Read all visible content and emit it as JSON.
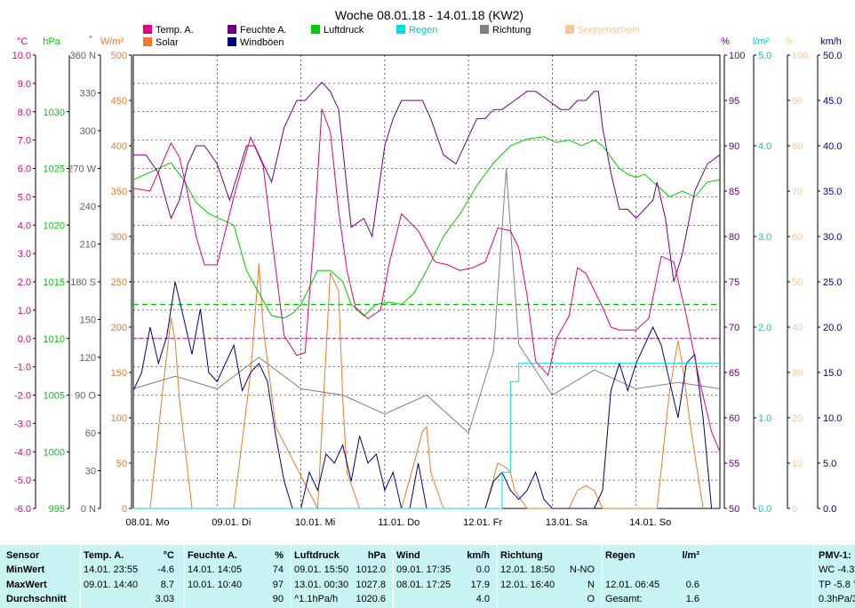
{
  "chart_data": {
    "type": "line",
    "title": "Woche 08.01.18 - 14.01.18 (KW2)",
    "legend": [
      {
        "name": "Temp. A.",
        "color": "#e0007a"
      },
      {
        "name": "Feuchte A.",
        "color": "#6a0080"
      },
      {
        "name": "Luftdruck",
        "color": "#00cc00"
      },
      {
        "name": "Regen",
        "color": "#00dede"
      },
      {
        "name": "Richtung",
        "color": "#808080"
      },
      {
        "name": "Sonnenschein",
        "color": "#f5c896"
      },
      {
        "name": "Solar",
        "color": "#f07828"
      },
      {
        "name": "Windböen",
        "color": "#000080"
      }
    ],
    "x_ticks": [
      "08.01. Mo",
      "09.01. Di",
      "10.01. Mi",
      "11.01. Do",
      "12.01. Fr",
      "13.01. Sa",
      "14.01. So"
    ],
    "axes": {
      "temp": {
        "unit": "°C",
        "min": -6,
        "max": 10,
        "ticks": [
          "10.0",
          "9.0",
          "8.0",
          "7.0",
          "6.0",
          "5.0",
          "4.0",
          "3.0",
          "2.0",
          "1.0",
          "0.0",
          "-1.0",
          "-2.0",
          "-3.0",
          "-4.0",
          "-5.0",
          "-6.0"
        ]
      },
      "pressure": {
        "unit": "hPa",
        "min": 995,
        "max": 1035,
        "ticks": [
          "1030",
          "1025",
          "1020",
          "1015",
          "1010",
          "1005",
          "1000",
          "995"
        ]
      },
      "direction": {
        "unit": "°",
        "min": 0,
        "max": 360,
        "ticks": [
          "360 N",
          "330",
          "300",
          "270 W",
          "240",
          "210",
          "180 S",
          "150",
          "120",
          "90 O",
          "60",
          "30",
          "0 N"
        ]
      },
      "solar": {
        "unit": "W/m²",
        "min": 0,
        "max": 500,
        "ticks": [
          "500",
          "450",
          "400",
          "350",
          "300",
          "250",
          "200",
          "150",
          "100",
          "50",
          "0"
        ]
      },
      "humidity": {
        "unit": "%",
        "min": 50,
        "max": 100,
        "ticks": [
          "100",
          "95",
          "90",
          "85",
          "80",
          "75",
          "70",
          "65",
          "60",
          "55",
          "50"
        ]
      },
      "rain": {
        "unit": "l/m²",
        "min": 0,
        "max": 5,
        "ticks": [
          "5.0",
          "4.0",
          "3.0",
          "2.0",
          "1.0",
          "0.0"
        ]
      },
      "sunshine": {
        "unit": "h",
        "min": 0,
        "max": 100,
        "ticks": [
          "100",
          "90",
          "80",
          "70",
          "60",
          "50",
          "40",
          "30",
          "20",
          "10",
          "0"
        ]
      },
      "wind": {
        "unit": "km/h",
        "min": 0,
        "max": 50,
        "ticks": [
          "50.0",
          "45.0",
          "40.0",
          "35.0",
          "30.0",
          "25.0",
          "20.0",
          "15.0",
          "10.0",
          "5.0",
          "0.0"
        ]
      }
    },
    "series": [
      {
        "name": "Temp. A.",
        "unit": "°C",
        "x_days": [
          0,
          0.2,
          0.45,
          0.55,
          0.65,
          0.75,
          0.85,
          1.0,
          1.2,
          1.4,
          1.55,
          1.65,
          1.8,
          1.95,
          2.05,
          2.15,
          2.25,
          2.35,
          2.45,
          2.55,
          2.65,
          2.8,
          2.95,
          3.05,
          3.2,
          3.4,
          3.6,
          3.75,
          3.9,
          4.05,
          4.2,
          4.35,
          4.5,
          4.6,
          4.7,
          4.8,
          4.95,
          5.05,
          5.2,
          5.3,
          5.4,
          5.5,
          5.6,
          5.7,
          5.8,
          5.9,
          6.0,
          6.15,
          6.3,
          6.45,
          6.6,
          6.75,
          6.9,
          7.0
        ],
        "y": [
          5.3,
          5.2,
          6.9,
          6.4,
          5.1,
          3.6,
          2.6,
          2.6,
          5.0,
          7.1,
          6.1,
          3.6,
          0.1,
          -0.6,
          -0.5,
          3.4,
          8.1,
          7.3,
          4.5,
          2.4,
          1.1,
          0.7,
          1.0,
          2.6,
          4.4,
          3.8,
          2.7,
          2.6,
          2.4,
          2.5,
          2.7,
          3.9,
          3.8,
          3.2,
          1.5,
          -0.8,
          -1.3,
          0.0,
          0.8,
          2.5,
          2.3,
          1.7,
          1.1,
          0.4,
          0.3,
          0.3,
          0.3,
          0.7,
          2.9,
          2.7,
          0.8,
          -1.4,
          -3.3,
          -4.0
        ]
      },
      {
        "name": "Feuchte A.",
        "unit": "%",
        "x_days": [
          0,
          0.15,
          0.3,
          0.45,
          0.55,
          0.65,
          0.75,
          0.85,
          1.0,
          1.15,
          1.25,
          1.35,
          1.45,
          1.55,
          1.65,
          1.8,
          1.95,
          2.05,
          2.15,
          2.25,
          2.35,
          2.45,
          2.6,
          2.75,
          2.85,
          3.0,
          3.1,
          3.2,
          3.3,
          3.45,
          3.55,
          3.7,
          3.85,
          4.0,
          4.1,
          4.2,
          4.3,
          4.4,
          4.55,
          4.7,
          4.8,
          4.95,
          5.1,
          5.2,
          5.3,
          5.4,
          5.5,
          5.55,
          5.6,
          5.7,
          5.8,
          5.9,
          6.0,
          6.1,
          6.2,
          6.25,
          6.35,
          6.45,
          6.55,
          6.7,
          6.85,
          7.0
        ],
        "y": [
          89,
          89,
          87,
          82,
          84,
          88,
          90,
          90,
          88,
          84,
          87,
          90,
          90,
          88,
          86,
          92,
          95,
          95,
          96,
          97,
          96,
          94,
          81,
          82,
          80,
          90,
          93,
          95,
          95,
          95,
          93,
          89,
          88,
          91,
          93,
          93,
          94,
          94,
          95,
          96,
          96,
          95,
          94,
          94,
          95,
          95,
          96,
          96,
          92,
          87,
          83,
          83,
          82,
          83,
          84,
          86,
          82,
          75,
          78,
          85,
          88,
          89
        ]
      },
      {
        "name": "Luftdruck",
        "unit": "hPa",
        "x_days": [
          0,
          0.3,
          0.45,
          0.6,
          0.75,
          0.9,
          1.05,
          1.2,
          1.35,
          1.5,
          1.65,
          1.8,
          1.9,
          2.0,
          2.1,
          2.2,
          2.35,
          2.5,
          2.6,
          2.75,
          2.9,
          3.05,
          3.2,
          3.35,
          3.5,
          3.7,
          3.9,
          4.1,
          4.3,
          4.5,
          4.7,
          4.9,
          5.05,
          5.2,
          5.35,
          5.5,
          5.6,
          5.7,
          5.8,
          5.9,
          6.0,
          6.1,
          6.25,
          6.4,
          6.55,
          6.7,
          6.85,
          7.0
        ],
        "y": [
          1024,
          1025,
          1025.5,
          1024,
          1022,
          1021,
          1020.5,
          1020,
          1016,
          1014,
          1012,
          1011.8,
          1012.2,
          1013,
          1014.5,
          1016,
          1016,
          1015,
          1013,
          1012,
          1013,
          1013.2,
          1013,
          1014,
          1016,
          1019,
          1021,
          1023.5,
          1025.5,
          1027,
          1027.6,
          1027.8,
          1027.3,
          1027.5,
          1027,
          1027.5,
          1027,
          1026,
          1025,
          1024.5,
          1024.2,
          1024.5,
          1023.5,
          1022.5,
          1023,
          1022.5,
          1023.8,
          1024
        ]
      },
      {
        "name": "Regen",
        "unit": "l/m²",
        "x_days": [
          0,
          4.4,
          4.4,
          4.5,
          4.5,
          4.6,
          4.6,
          7.0
        ],
        "y": [
          0,
          0,
          0.4,
          0.4,
          1.4,
          1.4,
          1.6,
          1.6
        ]
      },
      {
        "name": "Windböen",
        "unit": "km/h",
        "x_days": [
          0,
          0.1,
          0.2,
          0.3,
          0.4,
          0.5,
          0.6,
          0.7,
          0.8,
          0.9,
          1.0,
          1.1,
          1.2,
          1.3,
          1.4,
          1.5,
          1.6,
          1.7,
          1.8,
          1.9,
          2.0,
          2.1,
          2.2,
          2.3,
          2.4,
          2.5,
          2.6,
          2.7,
          2.8,
          2.9,
          3.0,
          3.1,
          3.2,
          3.3,
          3.4,
          3.5,
          3.6,
          3.7,
          3.8,
          3.9,
          4.0,
          4.1,
          4.2,
          4.3,
          4.4,
          4.5,
          4.6,
          4.7,
          4.8,
          4.9,
          5.0,
          5.1,
          5.2,
          5.3,
          5.4,
          5.5,
          5.6,
          5.7,
          5.8,
          5.9,
          6.0,
          6.1,
          6.2,
          6.3,
          6.4,
          6.5,
          6.6,
          6.7,
          6.8,
          6.9,
          7.0
        ],
        "y": [
          13,
          15,
          20,
          16,
          19,
          25,
          21,
          17,
          22,
          15,
          14,
          16,
          18,
          13,
          15,
          16,
          14,
          8,
          3,
          0,
          0,
          4,
          2,
          6,
          5,
          7,
          3,
          8,
          5,
          6,
          2,
          4,
          0,
          0,
          5,
          0,
          0,
          0,
          0,
          0,
          0,
          0,
          0,
          3,
          4,
          2,
          1,
          2,
          4,
          1,
          0,
          0,
          0,
          0,
          0,
          0,
          2,
          13,
          16,
          13,
          16,
          18,
          20,
          18,
          14,
          10,
          16,
          17,
          10,
          0,
          0
        ]
      },
      {
        "name": "Richtung",
        "unit": "°",
        "x_days": [
          0,
          0.5,
          1.0,
          1.5,
          2.0,
          2.5,
          3.0,
          3.5,
          4.0,
          4.3,
          4.45,
          4.6,
          5.0,
          5.5,
          6.0,
          6.5,
          7.0
        ],
        "y": [
          95,
          105,
          95,
          120,
          95,
          90,
          75,
          90,
          60,
          125,
          270,
          130,
          90,
          110,
          95,
          100,
          95
        ]
      },
      {
        "name": "Solar",
        "unit": "W/m²",
        "x_days": [
          0.2,
          0.35,
          0.45,
          0.5,
          0.55,
          0.7,
          1.2,
          1.4,
          1.5,
          1.55,
          1.7,
          2.2,
          2.35,
          2.45,
          2.5,
          2.55,
          2.7,
          3.2,
          3.35,
          3.45,
          3.5,
          3.55,
          3.7,
          4.2,
          4.35,
          4.45,
          4.5,
          4.55,
          4.7,
          5.2,
          5.3,
          5.4,
          5.5,
          5.6,
          6.25,
          6.4,
          6.5,
          6.55,
          6.65,
          6.8
        ],
        "y": [
          0,
          130,
          210,
          185,
          120,
          0,
          0,
          150,
          270,
          200,
          90,
          0,
          260,
          240,
          120,
          40,
          0,
          0,
          50,
          85,
          90,
          40,
          0,
          0,
          50,
          45,
          40,
          20,
          0,
          0,
          20,
          25,
          20,
          0,
          0,
          130,
          185,
          160,
          90,
          0
        ]
      }
    ]
  },
  "stats": {
    "labels": {
      "sensor": "Sensor",
      "min": "MinWert",
      "max": "MaxWert",
      "avg": "Durchschnitt"
    },
    "columns": [
      {
        "name": "Temp. A.",
        "unit": "°C",
        "min_time": "14.01.  23:55",
        "min_val": "-4.6",
        "max_time": "09.01.  14:40",
        "max_val": "8.7",
        "avg_time": "",
        "avg_val": "3.03"
      },
      {
        "name": "Feuchte A.",
        "unit": "%",
        "min_time": "14.01.  14:05",
        "min_val": "74",
        "max_time": "10.01.  10:40",
        "max_val": "97",
        "avg_time": "",
        "avg_val": "90"
      },
      {
        "name": "Luftdruck",
        "unit": "hPa",
        "min_time": "09.01.  15:50",
        "min_val": "1012.0",
        "max_time": "13.01.  00:30",
        "max_val": "1027.8",
        "avg_time": "^1.1hPa/h",
        "avg_val": "1020.6"
      },
      {
        "name": "Wind",
        "unit": "km/h",
        "min_time": "09.01.  17:35",
        "min_val": "0.0",
        "max_time": "08.01.  17:25",
        "max_val": "17.9",
        "avg_time": "",
        "avg_val": "4.0"
      },
      {
        "name": "Richtung",
        "unit": "",
        "min_time": "12.01.  18:50",
        "min_val": "N-NO",
        "max_time": "12.01.  16:40",
        "max_val": "N",
        "avg_time": "",
        "avg_val": "O"
      },
      {
        "name": "Regen",
        "unit": "l/m²",
        "min_time": "",
        "min_val": "",
        "max_time": "12.01.  06:45",
        "max_val": "0.6",
        "avg_time": "Gesamt:",
        "avg_val": "1.6"
      }
    ],
    "pmv": {
      "name": "PMV-1:",
      "wc": "WC -4.3",
      "tp": "TP -5.8 °",
      "trend": "0.3hPa/3"
    }
  }
}
